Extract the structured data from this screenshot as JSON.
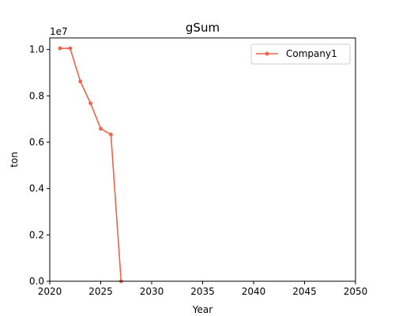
{
  "colors": {
    "series": "#f0624a",
    "axis": "#000000",
    "background": "#ffffff"
  },
  "chart_data": {
    "type": "line",
    "title": "gSum",
    "xlabel": "Year",
    "ylabel": "ton",
    "offset_label": "1e7",
    "xlim": [
      2020,
      2050
    ],
    "ylim": [
      0,
      10500000
    ],
    "x_ticks": [
      2020,
      2025,
      2030,
      2035,
      2040,
      2045,
      2050
    ],
    "x_tick_labels": [
      "2020",
      "2025",
      "2030",
      "2035",
      "2040",
      "2045",
      "2050"
    ],
    "y_ticks": [
      0,
      2000000,
      4000000,
      6000000,
      8000000,
      10000000
    ],
    "y_tick_labels": [
      "0.0",
      "0.2",
      "0.4",
      "0.6",
      "0.8",
      "1.0"
    ],
    "grid": false,
    "legend_position": "top-right",
    "series": [
      {
        "name": "Company1",
        "x": [
          2021,
          2022,
          2023,
          2024,
          2025,
          2026,
          2027
        ],
        "values": [
          10050000,
          10050000,
          8620000,
          7680000,
          6580000,
          6330000,
          0
        ]
      }
    ]
  }
}
